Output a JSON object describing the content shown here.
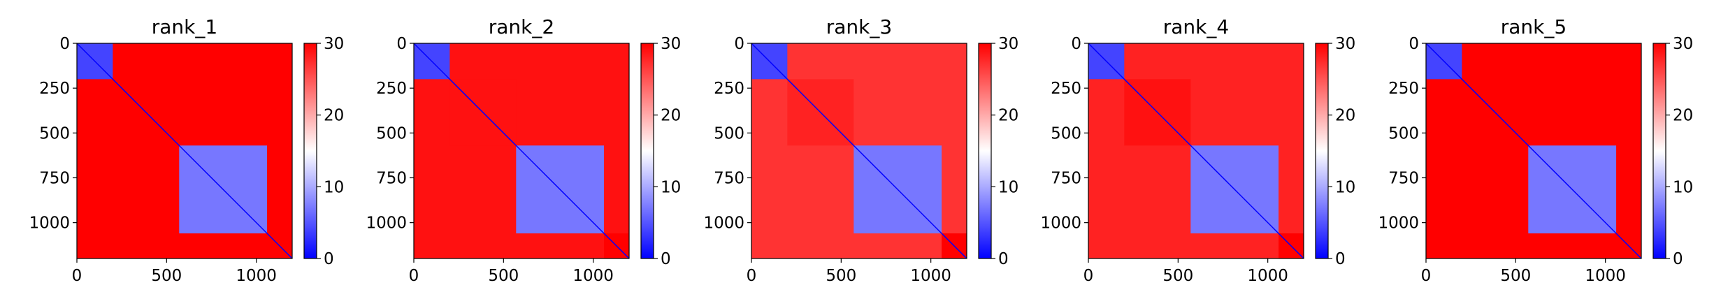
{
  "chart_data": [
    {
      "type": "heatmap",
      "title": "rank_1",
      "xticks": [
        "0",
        "500",
        "1000"
      ],
      "yticks": [
        "0",
        "250",
        "500",
        "750",
        "1000"
      ],
      "xlim": [
        0,
        1200
      ],
      "ylim": [
        1200,
        0
      ],
      "colorbar": {
        "ticks": [
          "0",
          "10",
          "20",
          "30"
        ],
        "range": [
          0,
          30
        ],
        "cmap": [
          "#0000ff",
          "#ffffff",
          "#ff0000"
        ]
      },
      "matrix_size": 1200,
      "blocks": [
        {
          "start": 0,
          "end": 200,
          "mean_value": 4
        },
        {
          "start": 200,
          "end": 570,
          "mean_value": 30
        },
        {
          "start": 570,
          "end": 1060,
          "mean_value": 7
        },
        {
          "start": 1060,
          "end": 1200,
          "mean_value": 30
        }
      ],
      "off_block_value": 30,
      "diagonal_value": 0
    },
    {
      "type": "heatmap",
      "title": "rank_2",
      "xticks": [
        "0",
        "500",
        "1000"
      ],
      "yticks": [
        "0",
        "250",
        "500",
        "750",
        "1000"
      ],
      "xlim": [
        0,
        1200
      ],
      "ylim": [
        1200,
        0
      ],
      "colorbar": {
        "ticks": [
          "0",
          "10",
          "20",
          "30"
        ],
        "range": [
          0,
          30
        ],
        "cmap": [
          "#0000ff",
          "#ffffff",
          "#ff0000"
        ]
      },
      "matrix_size": 1200,
      "blocks": [
        {
          "start": 0,
          "end": 200,
          "mean_value": 4
        },
        {
          "start": 200,
          "end": 570,
          "mean_value": 29
        },
        {
          "start": 570,
          "end": 1060,
          "mean_value": 7
        },
        {
          "start": 1060,
          "end": 1200,
          "mean_value": 30
        }
      ],
      "off_block_value": 29,
      "diagonal_value": 0
    },
    {
      "type": "heatmap",
      "title": "rank_3",
      "xticks": [
        "0",
        "500",
        "1000"
      ],
      "yticks": [
        "0",
        "250",
        "500",
        "750",
        "1000"
      ],
      "xlim": [
        0,
        1200
      ],
      "ylim": [
        1200,
        0
      ],
      "colorbar": {
        "ticks": [
          "0",
          "10",
          "20",
          "30"
        ],
        "range": [
          0,
          30
        ],
        "cmap": [
          "#0000ff",
          "#ffffff",
          "#ff0000"
        ]
      },
      "matrix_size": 1200,
      "blocks": [
        {
          "start": 0,
          "end": 200,
          "mean_value": 4
        },
        {
          "start": 200,
          "end": 570,
          "mean_value": 28
        },
        {
          "start": 570,
          "end": 1060,
          "mean_value": 7
        },
        {
          "start": 1060,
          "end": 1200,
          "mean_value": 30
        }
      ],
      "off_block_value": 27,
      "diagonal_value": 0
    },
    {
      "type": "heatmap",
      "title": "rank_4",
      "xticks": [
        "0",
        "500",
        "1000"
      ],
      "yticks": [
        "0",
        "250",
        "500",
        "750",
        "1000"
      ],
      "xlim": [
        0,
        1200
      ],
      "ylim": [
        1200,
        0
      ],
      "colorbar": {
        "ticks": [
          "0",
          "10",
          "20",
          "30"
        ],
        "range": [
          0,
          30
        ],
        "cmap": [
          "#0000ff",
          "#ffffff",
          "#ff0000"
        ]
      },
      "matrix_size": 1200,
      "blocks": [
        {
          "start": 0,
          "end": 200,
          "mean_value": 4
        },
        {
          "start": 200,
          "end": 570,
          "mean_value": 29
        },
        {
          "start": 570,
          "end": 1060,
          "mean_value": 7
        },
        {
          "start": 1060,
          "end": 1200,
          "mean_value": 30
        }
      ],
      "off_block_value": 28,
      "diagonal_value": 0
    },
    {
      "type": "heatmap",
      "title": "rank_5",
      "xticks": [
        "0",
        "500",
        "1000"
      ],
      "yticks": [
        "0",
        "250",
        "500",
        "750",
        "1000"
      ],
      "xlim": [
        0,
        1200
      ],
      "ylim": [
        1200,
        0
      ],
      "colorbar": {
        "ticks": [
          "0",
          "10",
          "20",
          "30"
        ],
        "range": [
          0,
          30
        ],
        "cmap": [
          "#0000ff",
          "#ffffff",
          "#ff0000"
        ]
      },
      "matrix_size": 1200,
      "blocks": [
        {
          "start": 0,
          "end": 200,
          "mean_value": 4
        },
        {
          "start": 200,
          "end": 570,
          "mean_value": 30
        },
        {
          "start": 570,
          "end": 1060,
          "mean_value": 7
        },
        {
          "start": 1060,
          "end": 1200,
          "mean_value": 30
        }
      ],
      "off_block_value": 30,
      "diagonal_value": 0
    }
  ]
}
